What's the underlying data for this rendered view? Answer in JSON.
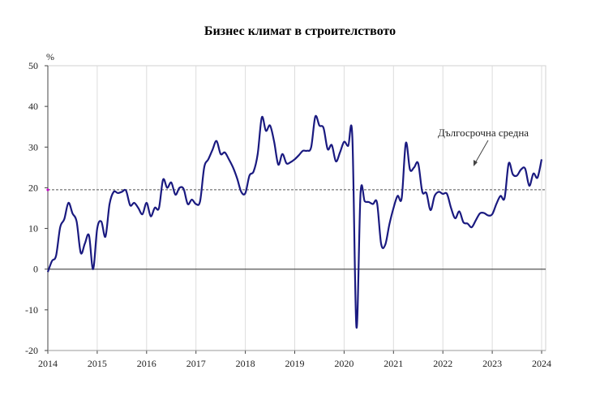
{
  "chart_data": {
    "type": "line",
    "title": "Бизнес климат в строителството",
    "ylabel": "%",
    "xlabel": "",
    "ylim": [
      -20,
      50
    ],
    "yticks": [
      "50",
      "40",
      "30",
      "20",
      "10",
      "0",
      "-10",
      "-20"
    ],
    "xticks": [
      "2014",
      "2015",
      "2016",
      "2017",
      "2018",
      "2019",
      "2020",
      "2021",
      "2022",
      "2023",
      "2024"
    ],
    "x_start": "2014-01",
    "frequency": "monthly",
    "grid": "vertical",
    "colors": {
      "series": "#1a1a80",
      "average": "#555555",
      "marker": "#cc00cc"
    },
    "series": [
      {
        "name": "Бизнес климат в строителството",
        "values": [
          -0.7,
          2,
          3.3,
          10.3,
          12.3,
          16.3,
          13.7,
          11.7,
          4,
          6.3,
          8.3,
          0,
          10,
          11.7,
          8,
          16,
          19,
          18.7,
          19,
          19.3,
          15.7,
          16.3,
          15,
          13.5,
          16.3,
          13,
          15.1,
          15,
          22,
          20,
          21.3,
          18.3,
          20,
          19.7,
          16,
          17.1,
          16,
          16.7,
          25,
          27,
          29.3,
          31.5,
          28.3,
          28.7,
          27,
          25,
          22.3,
          19,
          18.7,
          23,
          24,
          28.3,
          37.3,
          34,
          35.3,
          31.3,
          25.7,
          28.3,
          26,
          26.3,
          27,
          28,
          29.1,
          29.1,
          30,
          37.5,
          35.3,
          34.7,
          29.5,
          30.5,
          26.5,
          28.7,
          31.3,
          30.3,
          32.5,
          -14.3,
          18.7,
          16.7,
          16.5,
          16,
          16.3,
          6.2,
          6,
          11,
          15,
          18,
          17.5,
          31,
          24.5,
          25,
          26,
          19,
          18.7,
          14.5,
          18,
          19,
          18.5,
          18.5,
          15,
          12.5,
          14.2,
          11.5,
          11.2,
          10.3,
          12,
          13.7,
          13.8,
          13.2,
          13.5,
          16,
          18,
          17.5,
          26,
          23.3,
          23,
          24.5,
          24.7,
          20.5,
          23.5,
          22.5,
          27
        ]
      }
    ],
    "reference_line": {
      "label": "Дългосрочна средна",
      "value": 19.5
    }
  }
}
